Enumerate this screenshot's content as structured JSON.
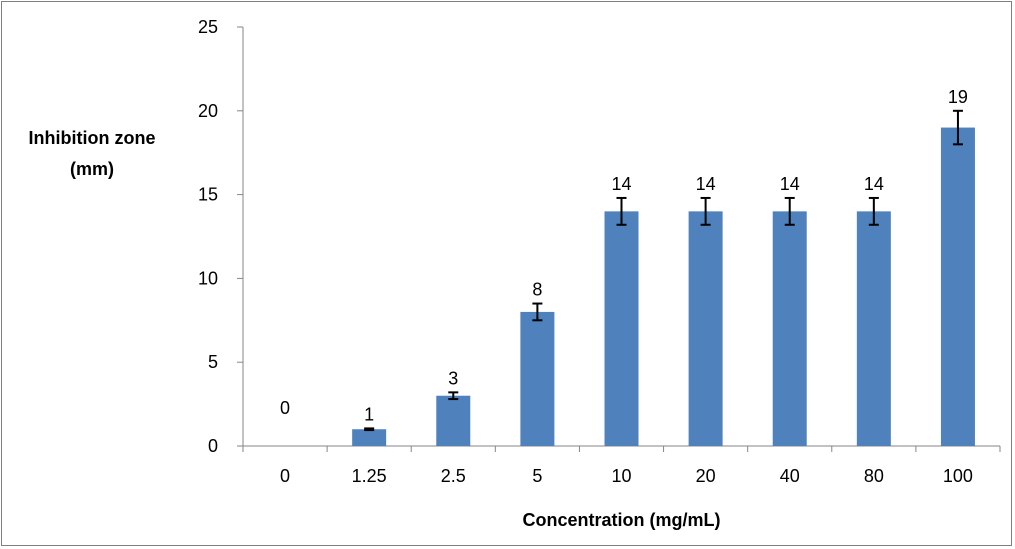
{
  "chart_data": {
    "type": "bar",
    "title": "",
    "xlabel": "Concentration (mg/mL)",
    "ylabel_lines": [
      "Inhibition zone",
      "(mm)"
    ],
    "categories": [
      "0",
      "1.25",
      "2.5",
      "5",
      "10",
      "20",
      "40",
      "80",
      "100"
    ],
    "values": [
      0,
      1,
      3,
      8,
      14,
      14,
      14,
      14,
      19
    ],
    "errors": [
      0,
      0.05,
      0.2,
      0.5,
      0.8,
      0.8,
      0.8,
      0.8,
      1.0
    ],
    "data_labels": [
      "0",
      "1",
      "3",
      "8",
      "14",
      "14",
      "14",
      "14",
      "19"
    ],
    "ylim": [
      0,
      25
    ],
    "yticks": [
      0,
      5,
      10,
      15,
      20,
      25
    ],
    "grid": false,
    "legend": "none",
    "bar_color": "#4f81bd"
  }
}
